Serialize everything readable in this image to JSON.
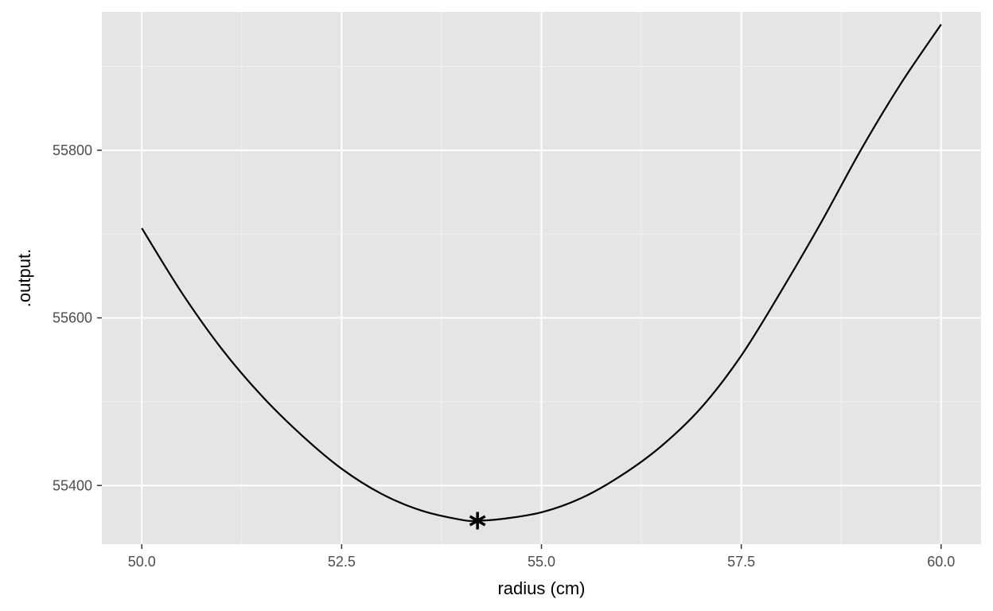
{
  "chart_data": {
    "type": "line",
    "title": "",
    "xlabel": "radius (cm)",
    "ylabel": ".output.",
    "xlim": [
      49.5,
      60.5
    ],
    "ylim": [
      55330,
      55965
    ],
    "x_ticks": [
      50.0,
      52.5,
      55.0,
      57.5,
      60.0
    ],
    "x_tick_labels": [
      "50.0",
      "52.5",
      "55.0",
      "57.5",
      "60.0"
    ],
    "y_ticks": [
      55400,
      55600,
      55800
    ],
    "y_tick_labels": [
      "55400",
      "55600",
      "55800"
    ],
    "grid": true,
    "legend": "none",
    "series": [
      {
        "x": [
          50.0,
          50.5,
          51.0,
          51.5,
          52.0,
          52.5,
          53.0,
          53.5,
          54.0,
          54.2,
          54.5,
          55.0,
          55.5,
          56.0,
          56.5,
          57.0,
          57.5,
          58.0,
          58.5,
          59.0,
          59.5,
          60.0
        ],
        "y": [
          55707,
          55630,
          55563,
          55507,
          55460,
          55420,
          55390,
          55370,
          55359,
          55358,
          55360,
          55368,
          55385,
          55412,
          55447,
          55493,
          55555,
          55632,
          55714,
          55801,
          55880,
          55950
        ]
      }
    ],
    "highlight_point": {
      "x": 54.2,
      "y": 55358,
      "marker": "asterisk"
    }
  },
  "colors": {
    "panel_bg": "#e5e5e5",
    "grid_major": "#ffffff",
    "grid_minor": "#f2f2f2",
    "line": "#000000",
    "tick_text": "#4d4d4d",
    "axis_title": "#000000",
    "tick_mark": "#333333"
  }
}
